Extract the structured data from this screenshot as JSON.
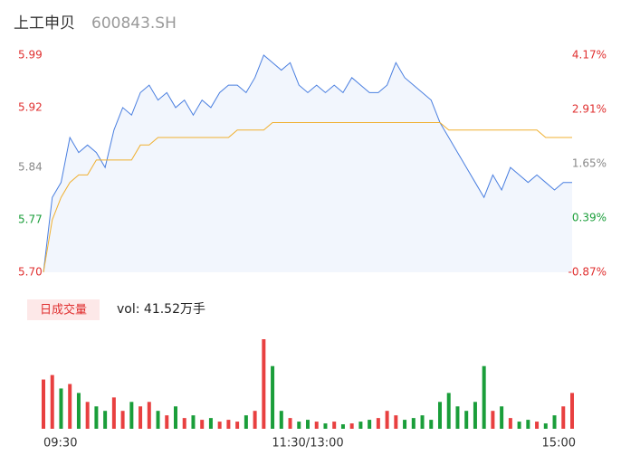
{
  "chart_data": [
    {
      "type": "line",
      "title": "上工申贝",
      "subtitle": "600843.SH",
      "x": [
        0,
        4,
        8,
        12,
        16,
        20,
        24,
        28,
        32,
        36,
        40,
        44,
        48,
        52,
        56,
        60,
        64,
        68,
        72,
        76,
        80,
        84,
        88,
        92,
        96,
        100,
        104,
        108,
        112,
        116,
        120,
        124,
        128,
        132,
        136,
        140,
        144,
        148,
        152,
        156,
        160,
        164,
        168,
        172,
        176,
        180,
        184,
        188,
        192,
        196,
        200,
        204,
        208,
        212,
        216,
        220,
        224,
        228,
        232,
        236,
        240
      ],
      "xlim": [
        0,
        240
      ],
      "ylim": [
        5.7,
        5.99
      ],
      "yticks": [
        5.99,
        5.92,
        5.84,
        5.77,
        {
          "value": 5.7,
          "label": "5.70"
        }
      ],
      "ytick_colors": [
        "#e03030",
        "#e03030",
        "#888888",
        "#1a9e3a",
        "#e03030"
      ],
      "y2lim": [
        -0.87,
        4.17
      ],
      "y2ticks": [
        {
          "value": 4.17,
          "label": "4.17%"
        },
        {
          "value": 2.91,
          "label": "2.91%"
        },
        {
          "value": 1.65,
          "label": "1.65%"
        },
        {
          "value": 0.39,
          "label": "0.39%"
        },
        {
          "value": -0.87,
          "label": "-0.87%"
        }
      ],
      "y2tick_colors": [
        "#e03030",
        "#e03030",
        "#888888",
        "#1a9e3a",
        "#e03030"
      ],
      "series": [
        {
          "color": "#4a7fe0",
          "values": [
            5.7,
            5.8,
            5.82,
            5.88,
            5.86,
            5.87,
            5.86,
            5.84,
            5.89,
            5.92,
            5.91,
            5.94,
            5.95,
            5.93,
            5.94,
            5.92,
            5.93,
            5.91,
            5.93,
            5.92,
            5.94,
            5.95,
            5.95,
            5.94,
            5.96,
            5.99,
            5.98,
            5.97,
            5.98,
            5.95,
            5.94,
            5.95,
            5.94,
            5.95,
            5.94,
            5.96,
            5.95,
            5.94,
            5.94,
            5.95,
            5.98,
            5.96,
            5.95,
            5.94,
            5.93,
            5.9,
            5.88,
            5.86,
            5.84,
            5.82,
            5.8,
            5.83,
            5.81,
            5.84,
            5.83,
            5.82,
            5.83,
            5.82,
            5.81,
            5.82,
            5.82
          ]
        },
        {
          "color": "#f0b030",
          "values": [
            5.7,
            5.77,
            5.8,
            5.82,
            5.83,
            5.83,
            5.85,
            5.85,
            5.85,
            5.85,
            5.85,
            5.87,
            5.87,
            5.88,
            5.88,
            5.88,
            5.88,
            5.88,
            5.88,
            5.88,
            5.88,
            5.88,
            5.89,
            5.89,
            5.89,
            5.89,
            5.9,
            5.9,
            5.9,
            5.9,
            5.9,
            5.9,
            5.9,
            5.9,
            5.9,
            5.9,
            5.9,
            5.9,
            5.9,
            5.9,
            5.9,
            5.9,
            5.9,
            5.9,
            5.9,
            5.9,
            5.89,
            5.89,
            5.89,
            5.89,
            5.89,
            5.89,
            5.89,
            5.89,
            5.89,
            5.89,
            5.89,
            5.88,
            5.88,
            5.88,
            5.88
          ]
        }
      ]
    },
    {
      "type": "bar",
      "tab": "日成交量",
      "label": "vol: 41.52万手",
      "x": [
        0,
        4,
        8,
        12,
        16,
        20,
        24,
        28,
        32,
        36,
        40,
        44,
        48,
        52,
        56,
        60,
        64,
        68,
        72,
        76,
        80,
        84,
        88,
        92,
        96,
        100,
        104,
        108,
        112,
        116,
        120,
        124,
        128,
        132,
        136,
        140,
        144,
        148,
        152,
        156,
        160,
        164,
        168,
        172,
        176,
        180,
        184,
        188,
        192,
        196,
        200,
        204,
        208,
        212,
        216,
        220,
        224,
        228,
        232,
        236,
        240
      ],
      "xlim": [
        0,
        240
      ],
      "xticks": [
        {
          "value": 0,
          "label": "09:30"
        },
        {
          "value": 120,
          "label": "11:30/13:00"
        },
        {
          "value": 240,
          "label": "15:00"
        }
      ],
      "ylim": [
        0,
        100
      ],
      "values": [
        55,
        60,
        45,
        50,
        40,
        30,
        25,
        20,
        35,
        20,
        30,
        25,
        30,
        20,
        15,
        25,
        12,
        15,
        10,
        12,
        8,
        10,
        8,
        15,
        20,
        100,
        70,
        20,
        12,
        8,
        10,
        8,
        6,
        8,
        5,
        6,
        8,
        10,
        12,
        20,
        15,
        10,
        12,
        15,
        10,
        30,
        40,
        25,
        20,
        30,
        70,
        20,
        25,
        12,
        8,
        10,
        8,
        6,
        15,
        25,
        40
      ],
      "colors": [
        "#e84040",
        "#e84040",
        "#1a9e3a",
        "#e84040",
        "#1a9e3a",
        "#e84040",
        "#1a9e3a",
        "#1a9e3a",
        "#e84040",
        "#e84040",
        "#1a9e3a",
        "#e84040",
        "#e84040",
        "#1a9e3a",
        "#e84040",
        "#1a9e3a",
        "#e84040",
        "#1a9e3a",
        "#e84040",
        "#1a9e3a",
        "#e84040",
        "#e84040",
        "#e84040",
        "#1a9e3a",
        "#e84040",
        "#e84040",
        "#1a9e3a",
        "#1a9e3a",
        "#e84040",
        "#1a9e3a",
        "#1a9e3a",
        "#e84040",
        "#1a9e3a",
        "#e84040",
        "#1a9e3a",
        "#e84040",
        "#1a9e3a",
        "#1a9e3a",
        "#e84040",
        "#e84040",
        "#e84040",
        "#1a9e3a",
        "#1a9e3a",
        "#1a9e3a",
        "#1a9e3a",
        "#1a9e3a",
        "#1a9e3a",
        "#1a9e3a",
        "#1a9e3a",
        "#1a9e3a",
        "#1a9e3a",
        "#e84040",
        "#1a9e3a",
        "#e84040",
        "#1a9e3a",
        "#1a9e3a",
        "#e84040",
        "#1a9e3a",
        "#1a9e3a",
        "#e84040",
        "#e84040"
      ]
    }
  ]
}
